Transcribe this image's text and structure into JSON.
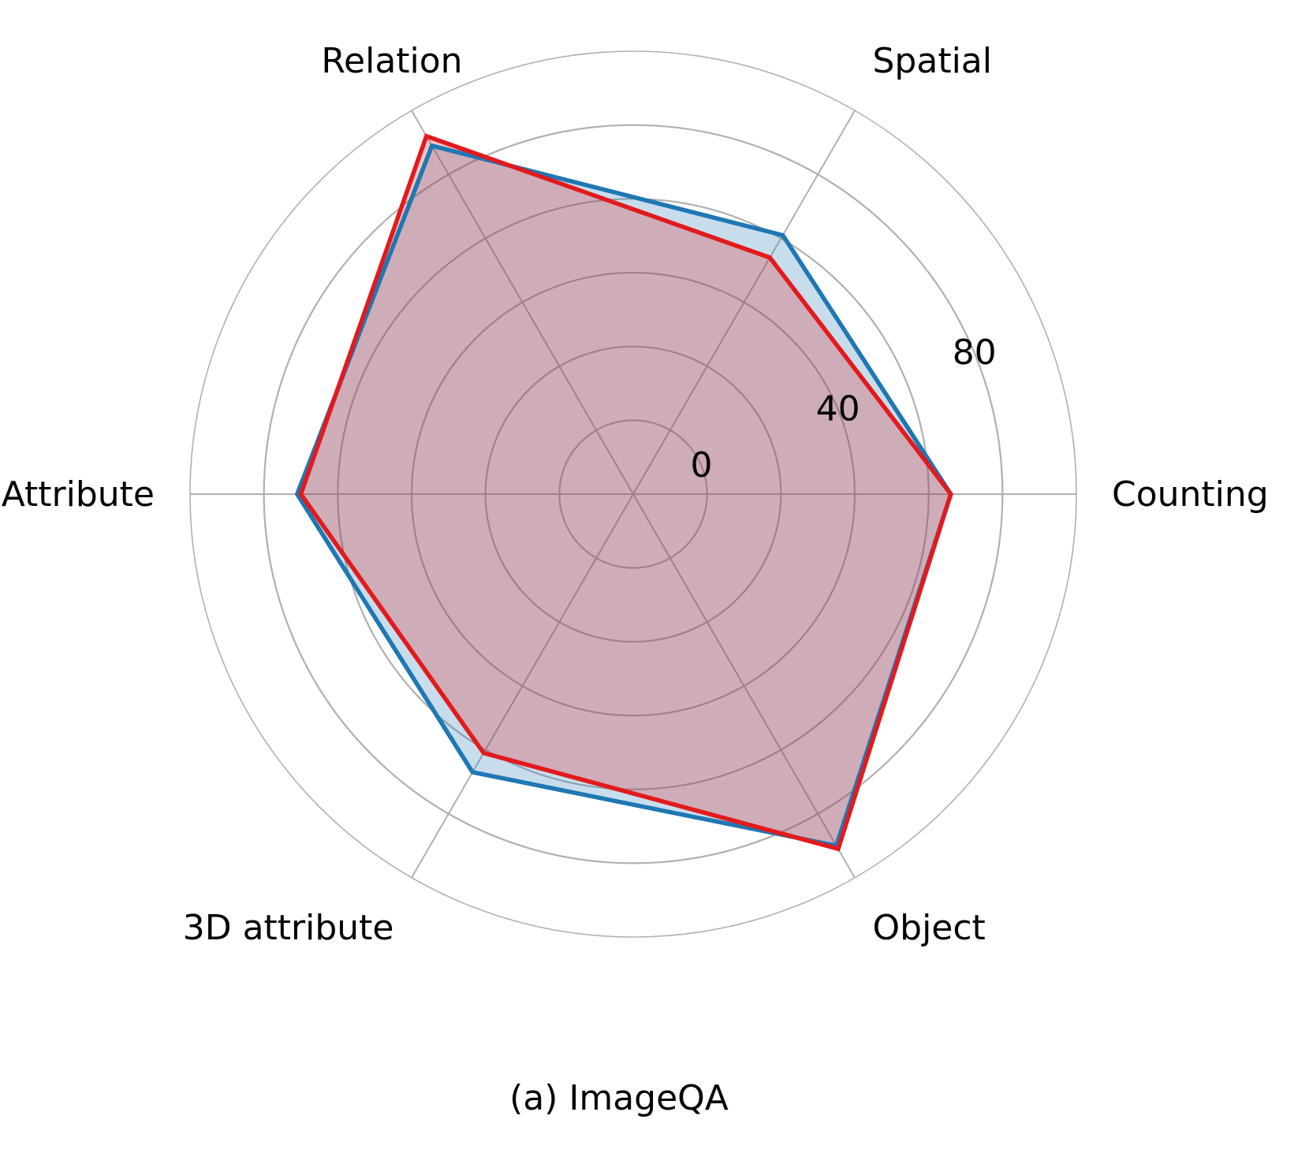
{
  "chart_data": {
    "type": "radar",
    "caption": "(a) ImageQA",
    "categories": [
      "Counting",
      "Spatial",
      "Relation",
      "Attribute",
      "3D attribute",
      "Object"
    ],
    "radial_ticks": [
      "0",
      "40",
      "80"
    ],
    "radial_tick_values": [
      0,
      40,
      80
    ],
    "r_min": -20,
    "r_max": 100,
    "grid_levels": [
      0,
      20,
      40,
      60,
      80,
      100
    ],
    "grid": true,
    "series": [
      {
        "color": "#1f77b4",
        "fill": "#1f77b4",
        "fill_opacity": 0.25,
        "values": [
          66,
          61,
          89,
          71,
          67,
          90
        ]
      },
      {
        "color": "#e31a1c",
        "fill": "#e31a1c",
        "fill_opacity": 0.25,
        "values": [
          66,
          54,
          92,
          70,
          61,
          91
        ]
      }
    ]
  }
}
